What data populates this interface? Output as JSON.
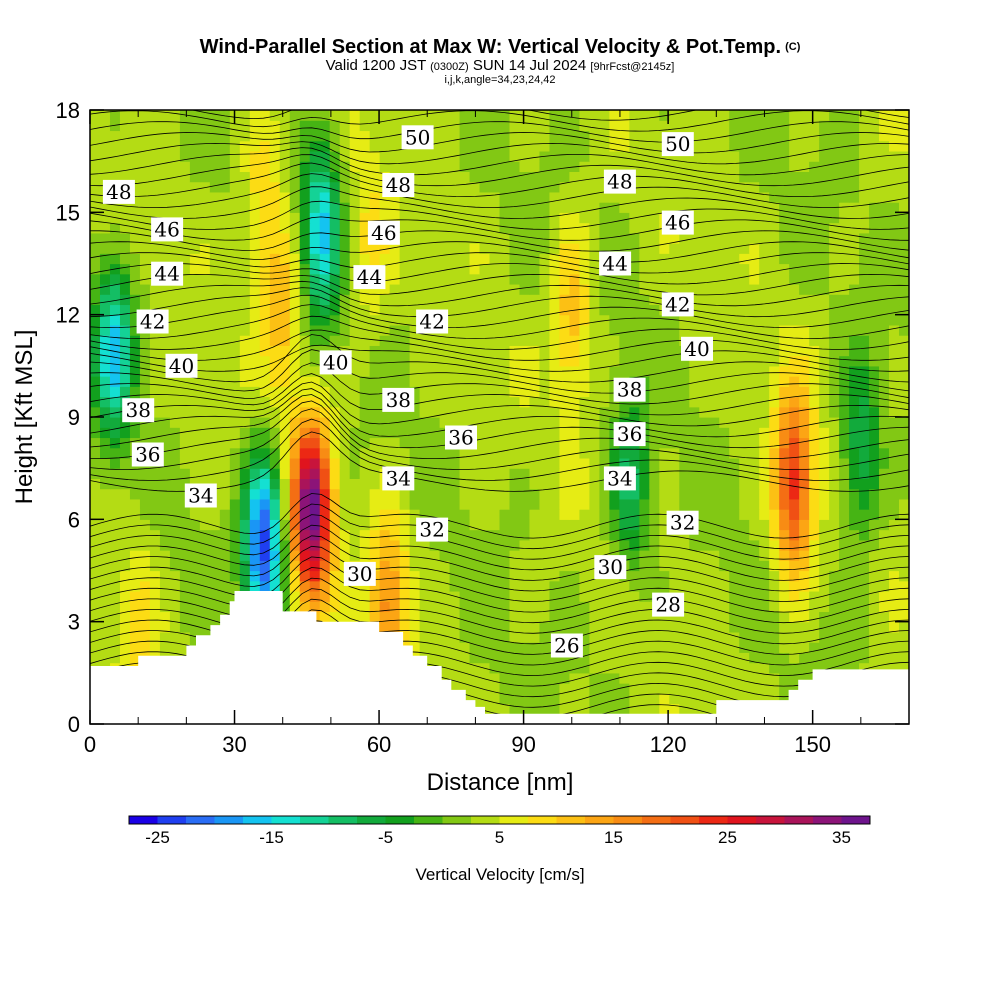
{
  "header": {
    "title": "Wind-Parallel Section at Max W: Vertical Velocity & Pot.Temp.",
    "title_tag": "(C)",
    "valid_prefix": "Valid 1200 JST",
    "valid_utc": "(0300Z)",
    "valid_date": "SUN 14 Jul 2024",
    "forecast_info": "[9hrFcst@2145z]",
    "grid_info": "i,j,k,angle=34,23,24,42"
  },
  "chart_data": {
    "type": "heatmap",
    "xlabel": "Distance [nm]",
    "ylabel": "Height [Kft MSL]",
    "xlim": [
      0,
      170
    ],
    "ylim": [
      0,
      18
    ],
    "xticks": [
      0,
      30,
      60,
      90,
      120,
      150
    ],
    "yticks": [
      0,
      3,
      6,
      9,
      12,
      15,
      18
    ],
    "terrain": {
      "x": [
        0,
        10,
        20,
        22,
        25,
        27,
        29,
        30,
        38,
        40,
        45,
        47,
        60,
        65,
        67,
        70,
        73,
        75,
        78,
        80,
        82,
        95,
        105,
        110,
        115,
        120,
        125,
        130,
        135,
        140,
        143,
        145,
        147,
        150,
        155,
        170
      ],
      "height_kft": [
        1.7,
        2.0,
        2.3,
        2.6,
        2.9,
        3.2,
        3.6,
        3.9,
        3.9,
        3.3,
        3.3,
        3.0,
        2.7,
        2.3,
        2.0,
        1.7,
        1.3,
        1.0,
        0.7,
        0.5,
        0.3,
        0.3,
        0.3,
        0.3,
        0.3,
        0.3,
        0.3,
        0.7,
        0.7,
        0.7,
        0.7,
        1.0,
        1.3,
        1.6,
        1.6,
        1.6
      ]
    },
    "vertical_velocity_features": [
      {
        "x": 46,
        "height_kft": 6.2,
        "w": 36
      },
      {
        "x": 36,
        "height_kft": 5.2,
        "w": -24
      },
      {
        "x": 40,
        "height_kft": 12.0,
        "w": 12
      },
      {
        "x": 36,
        "height_kft": 15.5,
        "w": 10
      },
      {
        "x": 48,
        "height_kft": 14.5,
        "w": -15
      },
      {
        "x": 5,
        "height_kft": 11.0,
        "w": -15
      },
      {
        "x": 100,
        "height_kft": 12.0,
        "w": 12
      },
      {
        "x": 146,
        "height_kft": 7.0,
        "w": 24
      },
      {
        "x": 62,
        "height_kft": 3.5,
        "w": 16
      },
      {
        "x": 10,
        "height_kft": 3.0,
        "w": 8
      },
      {
        "x": 58,
        "height_kft": 14.0,
        "w": 8
      },
      {
        "x": 112,
        "height_kft": 7.0,
        "w": -8
      },
      {
        "x": 160,
        "height_kft": 8.0,
        "w": -8
      }
    ],
    "theta_contours": [
      {
        "value": 26,
        "label_x": 99,
        "label_height_kft": 2.3
      },
      {
        "value": 28,
        "label_x": 120,
        "label_height_kft": 3.5
      },
      {
        "value": 30,
        "label_x": 56,
        "label_height_kft": 4.4
      },
      {
        "value": 30,
        "label_x": 108,
        "label_height_kft": 4.6
      },
      {
        "value": 32,
        "label_x": 71,
        "label_height_kft": 5.7
      },
      {
        "value": 32,
        "label_x": 123,
        "label_height_kft": 5.9
      },
      {
        "value": 34,
        "label_x": 23,
        "label_height_kft": 6.7
      },
      {
        "value": 34,
        "label_x": 64,
        "label_height_kft": 7.2
      },
      {
        "value": 34,
        "label_x": 110,
        "label_height_kft": 7.2
      },
      {
        "value": 36,
        "label_x": 12,
        "label_height_kft": 7.9
      },
      {
        "value": 36,
        "label_x": 77,
        "label_height_kft": 8.4
      },
      {
        "value": 36,
        "label_x": 112,
        "label_height_kft": 8.5
      },
      {
        "value": 38,
        "label_x": 10,
        "label_height_kft": 9.2
      },
      {
        "value": 38,
        "label_x": 64,
        "label_height_kft": 9.5
      },
      {
        "value": 38,
        "label_x": 112,
        "label_height_kft": 9.8
      },
      {
        "value": 40,
        "label_x": 19,
        "label_height_kft": 10.5
      },
      {
        "value": 40,
        "label_x": 51,
        "label_height_kft": 10.6
      },
      {
        "value": 40,
        "label_x": 126,
        "label_height_kft": 11.0
      },
      {
        "value": 42,
        "label_x": 13,
        "label_height_kft": 11.8
      },
      {
        "value": 42,
        "label_x": 71,
        "label_height_kft": 11.8
      },
      {
        "value": 42,
        "label_x": 122,
        "label_height_kft": 12.3
      },
      {
        "value": 44,
        "label_x": 16,
        "label_height_kft": 13.2
      },
      {
        "value": 44,
        "label_x": 58,
        "label_height_kft": 13.1
      },
      {
        "value": 44,
        "label_x": 109,
        "label_height_kft": 13.5
      },
      {
        "value": 46,
        "label_x": 16,
        "label_height_kft": 14.5
      },
      {
        "value": 46,
        "label_x": 61,
        "label_height_kft": 14.4
      },
      {
        "value": 46,
        "label_x": 122,
        "label_height_kft": 14.7
      },
      {
        "value": 48,
        "label_x": 6,
        "label_height_kft": 15.6
      },
      {
        "value": 48,
        "label_x": 64,
        "label_height_kft": 15.8
      },
      {
        "value": 48,
        "label_x": 110,
        "label_height_kft": 15.9
      },
      {
        "value": 50,
        "label_x": 68,
        "label_height_kft": 17.2
      },
      {
        "value": 50,
        "label_x": 122,
        "label_height_kft": 17.0
      }
    ],
    "colorbar": {
      "title": "Vertical Velocity [cm/s]",
      "min": -27.5,
      "step": 2.5,
      "labels": [
        "-25",
        "-15",
        "-5",
        "5",
        "15",
        "25",
        "35"
      ],
      "colors": [
        "#1a00e6",
        "#1f3ff0",
        "#2a6df5",
        "#1a96f5",
        "#14c3f0",
        "#14e0d2",
        "#14d296",
        "#14be64",
        "#12aa3c",
        "#12a01e",
        "#46b414",
        "#82c814",
        "#b4dc14",
        "#e6ec14",
        "#fcdc14",
        "#fcc014",
        "#fca514",
        "#f88c14",
        "#f46e14",
        "#f05014",
        "#ec2814",
        "#e0141e",
        "#c8143c",
        "#aa145a",
        "#8c1478",
        "#6e148c"
      ]
    }
  }
}
